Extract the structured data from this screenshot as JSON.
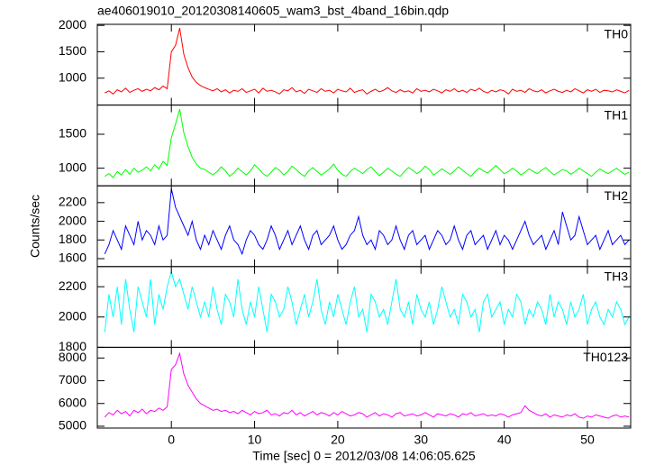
{
  "chart_data": {
    "type": "line",
    "title": "ae406019010_20120308140605_wam3_bst_4band_16bin.qdp",
    "x_label": "Time [sec] 0 = 2012/03/08 14:06:05.625",
    "y_label": "Counts/sec",
    "xlim": [
      -8.9,
      55.2
    ],
    "xticks": [
      0,
      10,
      20,
      30,
      40,
      50
    ],
    "x": [
      -8,
      -7.5,
      -7,
      -6.5,
      -6,
      -5.5,
      -5,
      -4.5,
      -4,
      -3.5,
      -3,
      -2.5,
      -2,
      -1.5,
      -1,
      -0.5,
      0,
      0.5,
      1,
      1.5,
      2,
      2.5,
      3,
      3.5,
      4,
      4.5,
      5,
      5.5,
      6,
      6.5,
      7,
      7.5,
      8,
      8.5,
      9,
      9.5,
      10,
      10.5,
      11,
      11.5,
      12,
      12.5,
      13,
      13.5,
      14,
      14.5,
      15,
      15.5,
      16,
      16.5,
      17,
      17.5,
      18,
      18.5,
      19,
      19.5,
      20,
      20.5,
      21,
      21.5,
      22,
      22.5,
      23,
      23.5,
      24,
      24.5,
      25,
      25.5,
      26,
      26.5,
      27,
      27.5,
      28,
      28.5,
      29,
      29.5,
      30,
      30.5,
      31,
      31.5,
      32,
      32.5,
      33,
      33.5,
      34,
      34.5,
      35,
      35.5,
      36,
      36.5,
      37,
      37.5,
      38,
      38.5,
      39,
      39.5,
      40,
      40.5,
      41,
      41.5,
      42,
      42.5,
      43,
      43.5,
      44,
      44.5,
      45,
      45.5,
      46,
      46.5,
      47,
      47.5,
      48,
      48.5,
      49,
      49.5,
      50,
      50.5,
      51,
      51.5,
      52,
      52.5,
      53,
      53.5,
      54,
      54.5,
      55
    ],
    "series": [
      {
        "name": "TH0",
        "color": "#ff0000",
        "ylim": [
          490,
          2020
        ],
        "yticks": [
          1000,
          1500,
          2000
        ],
        "values": [
          720,
          760,
          700,
          780,
          740,
          810,
          730,
          770,
          800,
          750,
          790,
          760,
          820,
          780,
          850,
          800,
          1500,
          1620,
          1950,
          1450,
          1200,
          1020,
          920,
          860,
          820,
          790,
          760,
          800,
          740,
          780,
          720,
          770,
          750,
          800,
          730,
          760,
          790,
          720,
          810,
          750,
          770,
          740,
          700,
          780,
          760,
          820,
          740,
          770,
          710,
          790,
          760,
          730,
          800,
          750,
          770,
          720,
          790,
          760,
          740,
          810,
          730,
          760,
          780,
          700,
          750,
          790,
          740,
          770,
          820,
          760,
          730,
          780,
          740,
          760,
          720,
          800,
          750,
          770,
          740,
          790,
          760,
          720,
          780,
          750,
          800,
          740,
          770,
          730,
          790,
          760,
          810,
          750,
          720,
          770,
          740,
          780,
          760,
          700,
          790,
          750,
          770,
          730,
          800,
          760,
          740,
          780,
          720,
          760,
          790,
          750,
          730,
          770,
          740,
          800,
          760,
          720,
          780,
          750,
          790,
          730,
          770,
          760,
          740,
          780,
          750,
          720,
          770
        ]
      },
      {
        "name": "TH1",
        "color": "#00ff00",
        "ylim": [
          740,
          1930
        ],
        "yticks": [
          1000,
          1500
        ],
        "values": [
          880,
          920,
          860,
          950,
          900,
          980,
          910,
          1000,
          940,
          970,
          1020,
          960,
          1050,
          990,
          1100,
          1040,
          1450,
          1650,
          1870,
          1520,
          1320,
          1160,
          1060,
          1000,
          980,
          940,
          900,
          950,
          1020,
          960,
          880,
          930,
          1000,
          950,
          900,
          960,
          1050,
          990,
          920,
          880,
          940,
          1010,
          970,
          900,
          950,
          1030,
          980,
          920,
          880,
          960,
          1010,
          950,
          900,
          940,
          990,
          1060,
          970,
          910,
          880,
          950,
          1000,
          960,
          920,
          980,
          1020,
          950,
          890,
          940,
          1000,
          960,
          910,
          880,
          950,
          1010,
          970,
          920,
          960,
          1030,
          980,
          900,
          940,
          990,
          950,
          910,
          960,
          1020,
          970,
          920,
          880,
          950,
          1000,
          960,
          930,
          980,
          1040,
          980,
          920,
          950,
          1000,
          960,
          900,
          940,
          990,
          950,
          920,
          970,
          1010,
          950,
          900,
          940,
          980,
          960,
          910,
          950,
          1000,
          960,
          920,
          880,
          940,
          990,
          950,
          920,
          960,
          1000,
          950,
          910,
          940
        ]
      },
      {
        "name": "TH2",
        "color": "#0000ff",
        "ylim": [
          1515,
          2380
        ],
        "yticks": [
          1600,
          1800,
          2000,
          2200
        ],
        "values": [
          1650,
          1750,
          1900,
          1800,
          1700,
          1950,
          1850,
          1750,
          2000,
          1800,
          1900,
          1850,
          1750,
          1950,
          1800,
          1850,
          2350,
          2150,
          2050,
          1950,
          1850,
          2000,
          1800,
          1700,
          1850,
          1750,
          1900,
          1800,
          1700,
          1850,
          1950,
          1800,
          1750,
          1650,
          1800,
          1900,
          1850,
          1750,
          1700,
          1800,
          1950,
          1850,
          1700,
          1800,
          1900,
          1750,
          1850,
          1950,
          1800,
          1700,
          1850,
          1900,
          1750,
          1800,
          1850,
          1950,
          1800,
          1700,
          1750,
          1850,
          1900,
          2050,
          1850,
          1750,
          1800,
          1700,
          1900,
          1850,
          1750,
          1800,
          1950,
          1800,
          1700,
          1850,
          1900,
          1750,
          1800,
          1850,
          1700,
          1800,
          1900,
          1850,
          1750,
          1800,
          1950,
          1800,
          1700,
          1850,
          1900,
          1750,
          1800,
          1850,
          1700,
          1800,
          1900,
          1750,
          1850,
          1800,
          1700,
          1800,
          1900,
          2000,
          1850,
          1750,
          1800,
          1850,
          1700,
          1800,
          1900,
          1750,
          2100,
          1950,
          1800,
          1850,
          2050,
          1900,
          1750,
          1800,
          1850,
          1700,
          1800,
          1900,
          1750,
          1800,
          1850,
          1750,
          1800
        ]
      },
      {
        "name": "TH3",
        "color": "#00ffff",
        "ylim": [
          1800,
          2333
        ],
        "yticks": [
          1800,
          2000,
          2200
        ],
        "values": [
          1900,
          2150,
          2000,
          2200,
          1950,
          2250,
          2050,
          1900,
          2200,
          2100,
          2000,
          2250,
          1950,
          2150,
          2050,
          2200,
          2300,
          2200,
          2250,
          2150,
          2050,
          2200,
          2100,
          2000,
          2100,
          2000,
          2200,
          2050,
          1950,
          2150,
          2100,
          2000,
          2250,
          2050,
          1950,
          2100,
          2000,
          2200,
          2050,
          1900,
          2150,
          2100,
          2000,
          2050,
          2200,
          2100,
          1950,
          2050,
          2150,
          2000,
          2100,
          2250,
          2050,
          1950,
          2100,
          2000,
          2150,
          2050,
          1950,
          2100,
          2200,
          2000,
          2050,
          1900,
          2150,
          2100,
          2000,
          2050,
          1950,
          2100,
          2250,
          2050,
          2000,
          2100,
          1950,
          2150,
          2050,
          2000,
          2100,
          1950,
          2050,
          2200,
          2100,
          2000,
          2050,
          1950,
          2150,
          2100,
          2000,
          2050,
          1900,
          2100,
          2150,
          2000,
          2050,
          2100,
          1950,
          2050,
          2000,
          2150,
          2100,
          1950,
          2050,
          2000,
          2100,
          2050,
          1950,
          2150,
          2000,
          2100,
          2050,
          1950,
          2100,
          2000,
          2050,
          2150,
          1950,
          2050,
          2100,
          2000,
          1950,
          2050,
          2000,
          2100,
          2050,
          1950,
          2000
        ]
      },
      {
        "name": "TH0123",
        "color": "#ff00ff",
        "ylim": [
          4920,
          8470
        ],
        "yticks": [
          5000,
          6000,
          7000,
          8000
        ],
        "values": [
          5400,
          5600,
          5500,
          5700,
          5550,
          5650,
          5450,
          5700,
          5600,
          5750,
          5550,
          5700,
          5650,
          5800,
          5700,
          5850,
          7500,
          7700,
          8200,
          7300,
          6800,
          6500,
          6200,
          6000,
          5900,
          5800,
          5700,
          5750,
          5650,
          5700,
          5600,
          5650,
          5550,
          5700,
          5600,
          5500,
          5650,
          5550,
          5600,
          5700,
          5500,
          5550,
          5450,
          5600,
          5550,
          5700,
          5500,
          5600,
          5450,
          5550,
          5650,
          5500,
          5600,
          5550,
          5450,
          5600,
          5500,
          5650,
          5550,
          5450,
          5500,
          5600,
          5550,
          5400,
          5500,
          5600,
          5450,
          5550,
          5500,
          5400,
          5550,
          5600,
          5450,
          5500,
          5550,
          5450,
          5500,
          5600,
          5500,
          5400,
          5550,
          5500,
          5450,
          5550,
          5500,
          5400,
          5550,
          5500,
          5600,
          5450,
          5500,
          5550,
          5450,
          5500,
          5450,
          5550,
          5500,
          5400,
          5500,
          5550,
          5600,
          5900,
          5700,
          5600,
          5500,
          5450,
          5550,
          5400,
          5500,
          5450,
          5400,
          5500,
          5450,
          5550,
          5400,
          5350,
          5450,
          5400,
          5500,
          5450,
          5400,
          5350,
          5450,
          5500,
          5400,
          5450,
          5400
        ]
      }
    ]
  }
}
